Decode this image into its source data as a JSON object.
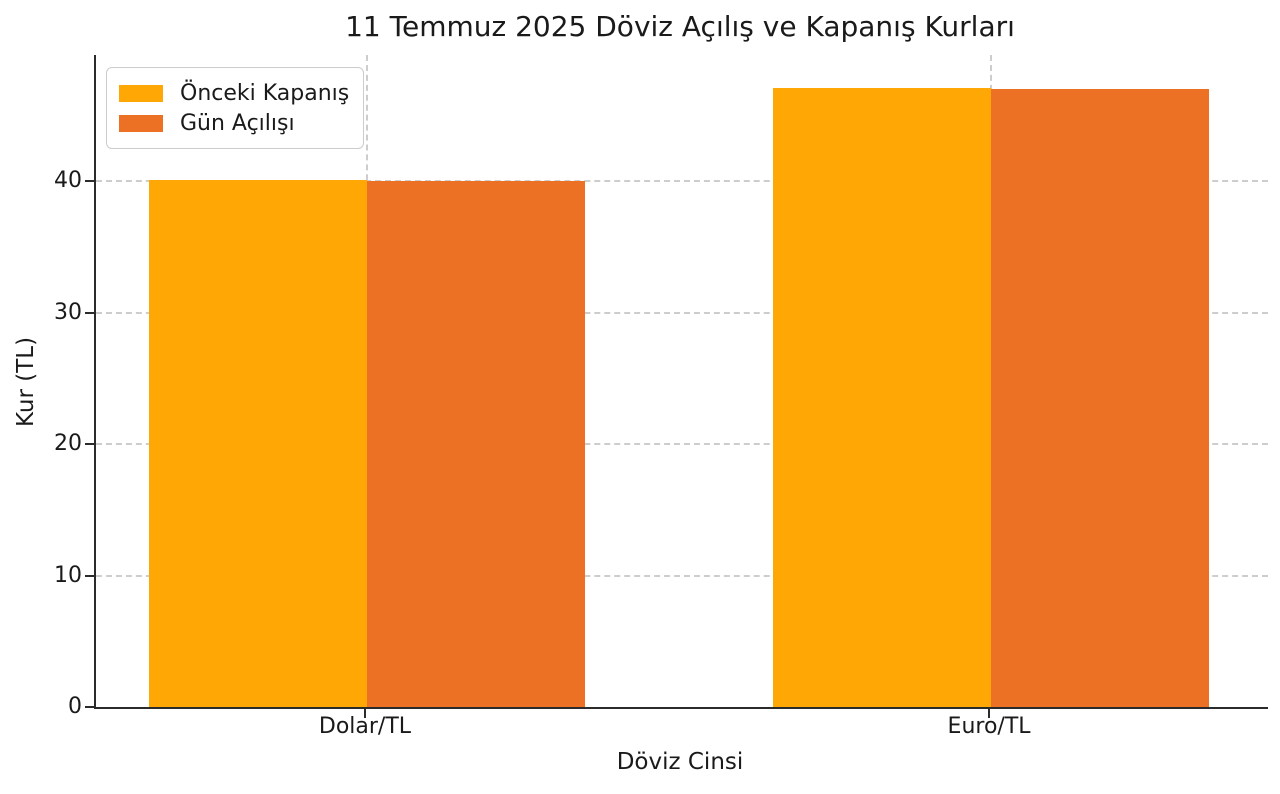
{
  "chart_data": {
    "type": "bar",
    "title": "11 Temmuz 2025 Döviz Açılış ve Kapanış Kurları",
    "xlabel": "Döviz Cinsi",
    "ylabel": "Kur (TL)",
    "categories": [
      "Dolar/TL",
      "Euro/TL"
    ],
    "series": [
      {
        "name": "Önceki Kapanış",
        "color": "#FFA704",
        "values": [
          40.1,
          47.1
        ]
      },
      {
        "name": "Gün Açılışı",
        "color": "#ED7124",
        "values": [
          40.0,
          47.0
        ]
      }
    ],
    "yticks": [
      0,
      10,
      20,
      30,
      40
    ],
    "ylim": [
      0,
      49.6
    ],
    "grid": true,
    "grid_style": "dashed",
    "legend_position": "upper-left",
    "bar_width_fraction": 0.35
  }
}
